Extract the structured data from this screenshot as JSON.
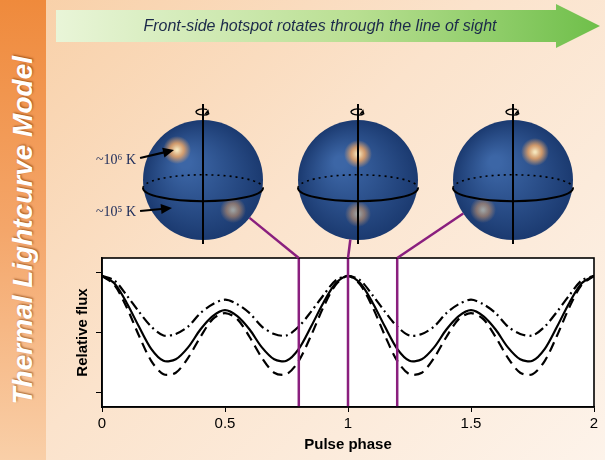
{
  "side_title": "Thermal Lightcurve Model",
  "banner": "Front-side hotspot rotates through the line of sight",
  "temperature_labels": [
    "~10⁶ K",
    "~10⁵ K"
  ],
  "chart_data": {
    "type": "line",
    "x_label": "Pulse phase",
    "y_label": "Relative flux",
    "x": [
      0,
      0.05,
      0.1,
      0.15,
      0.2,
      0.25,
      0.3,
      0.35,
      0.4,
      0.45,
      0.5,
      0.55,
      0.6,
      0.65,
      0.7,
      0.75,
      0.8,
      0.85,
      0.9,
      0.95,
      1,
      1.05,
      1.1,
      1.15,
      1.2,
      1.25,
      1.3,
      1.35,
      1.4,
      1.45,
      1.5,
      1.55,
      1.6,
      1.65,
      1.7,
      1.75,
      1.8,
      1.85,
      1.9,
      1.95,
      2
    ],
    "series": [
      {
        "color": "#000000",
        "line_style": "solid",
        "values": [
          0.88,
          0.83,
          0.7,
          0.54,
          0.39,
          0.31,
          0.32,
          0.4,
          0.52,
          0.61,
          0.65,
          0.61,
          0.52,
          0.4,
          0.32,
          0.31,
          0.39,
          0.54,
          0.7,
          0.83,
          0.88,
          0.83,
          0.7,
          0.54,
          0.39,
          0.31,
          0.32,
          0.4,
          0.52,
          0.61,
          0.65,
          0.61,
          0.52,
          0.4,
          0.32,
          0.31,
          0.39,
          0.54,
          0.7,
          0.83,
          0.88
        ]
      },
      {
        "color": "#000000",
        "line_style": "dashed",
        "values": [
          0.88,
          0.82,
          0.67,
          0.48,
          0.31,
          0.22,
          0.23,
          0.33,
          0.47,
          0.59,
          0.63,
          0.59,
          0.47,
          0.33,
          0.23,
          0.22,
          0.31,
          0.48,
          0.67,
          0.82,
          0.88,
          0.82,
          0.67,
          0.48,
          0.31,
          0.22,
          0.23,
          0.33,
          0.47,
          0.59,
          0.63,
          0.59,
          0.47,
          0.33,
          0.23,
          0.22,
          0.31,
          0.48,
          0.67,
          0.82,
          0.88
        ]
      },
      {
        "color": "#000000",
        "line_style": "dashdot",
        "values": [
          0.88,
          0.85,
          0.75,
          0.64,
          0.54,
          0.48,
          0.49,
          0.54,
          0.63,
          0.69,
          0.72,
          0.69,
          0.63,
          0.54,
          0.49,
          0.48,
          0.54,
          0.64,
          0.75,
          0.85,
          0.88,
          0.85,
          0.75,
          0.64,
          0.54,
          0.48,
          0.49,
          0.54,
          0.63,
          0.69,
          0.72,
          0.69,
          0.63,
          0.54,
          0.49,
          0.48,
          0.54,
          0.64,
          0.75,
          0.85,
          0.88
        ]
      }
    ],
    "xlim": [
      0,
      2
    ],
    "xticks": [
      0,
      0.5,
      1,
      1.5,
      2
    ],
    "ylim": [
      0,
      1
    ],
    "yticks": [
      0.1,
      0.5,
      0.9
    ],
    "grid": false,
    "tick_labels": "x",
    "phase_markers": [
      0.8,
      1,
      1.2
    ]
  }
}
